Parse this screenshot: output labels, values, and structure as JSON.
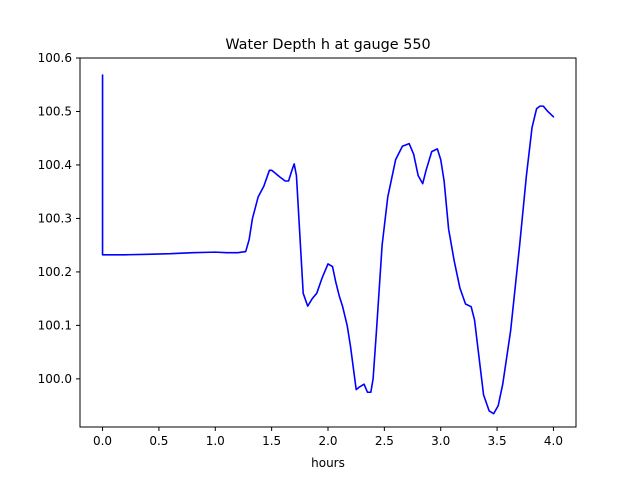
{
  "chart_data": {
    "type": "line",
    "title": "Water Depth h at gauge 550",
    "xlabel": "hours",
    "ylabel": "",
    "xlim": [
      -0.2,
      4.2
    ],
    "ylim": [
      99.91,
      100.6
    ],
    "x_ticks": [
      0.0,
      0.5,
      1.0,
      1.5,
      2.0,
      2.5,
      3.0,
      3.5,
      4.0
    ],
    "x_tick_labels": [
      "0.0",
      "0.5",
      "1.0",
      "1.5",
      "2.0",
      "2.5",
      "3.0",
      "3.5",
      "4.0"
    ],
    "y_ticks": [
      100.0,
      100.1,
      100.2,
      100.3,
      100.4,
      100.5,
      100.6
    ],
    "y_tick_labels": [
      "100.0",
      "100.1",
      "100.2",
      "100.3",
      "100.4",
      "100.5",
      "100.6"
    ],
    "grid": false,
    "legend": "none",
    "series": [
      {
        "color": "#0000ff",
        "x": [
          0.0,
          0.0,
          0.0,
          0.2,
          0.4,
          0.6,
          0.8,
          1.0,
          1.1,
          1.2,
          1.27,
          1.3,
          1.33,
          1.38,
          1.43,
          1.48,
          1.5,
          1.53,
          1.57,
          1.62,
          1.65,
          1.68,
          1.7,
          1.72,
          1.75,
          1.78,
          1.82,
          1.86,
          1.9,
          1.95,
          2.0,
          2.04,
          2.07,
          2.1,
          2.13,
          2.17,
          2.2,
          2.25,
          2.28,
          2.32,
          2.35,
          2.38,
          2.4,
          2.43,
          2.48,
          2.53,
          2.6,
          2.66,
          2.72,
          2.76,
          2.8,
          2.84,
          2.87,
          2.92,
          2.97,
          3.0,
          3.03,
          3.07,
          3.12,
          3.17,
          3.22,
          3.27,
          3.3,
          3.34,
          3.38,
          3.43,
          3.47,
          3.51,
          3.55,
          3.62,
          3.7,
          3.76,
          3.81,
          3.85,
          3.88,
          3.91,
          3.95,
          4.0
        ],
        "y": [
          100.232,
          100.568,
          100.232,
          100.232,
          100.233,
          100.234,
          100.236,
          100.237,
          100.236,
          100.236,
          100.238,
          100.26,
          100.3,
          100.34,
          100.36,
          100.39,
          100.39,
          100.385,
          100.378,
          100.37,
          100.37,
          100.39,
          100.402,
          100.38,
          100.27,
          100.16,
          100.136,
          100.15,
          100.16,
          100.19,
          100.215,
          100.21,
          100.18,
          100.155,
          100.135,
          100.1,
          100.06,
          99.98,
          99.985,
          99.99,
          99.975,
          99.975,
          100.0,
          100.09,
          100.25,
          100.34,
          100.41,
          100.435,
          100.44,
          100.42,
          100.38,
          100.365,
          100.39,
          100.425,
          100.43,
          100.41,
          100.37,
          100.28,
          100.22,
          100.17,
          100.14,
          100.135,
          100.11,
          100.04,
          99.97,
          99.94,
          99.935,
          99.95,
          99.99,
          100.09,
          100.25,
          100.38,
          100.47,
          100.505,
          100.51,
          100.51,
          100.5,
          100.49
        ]
      }
    ]
  }
}
